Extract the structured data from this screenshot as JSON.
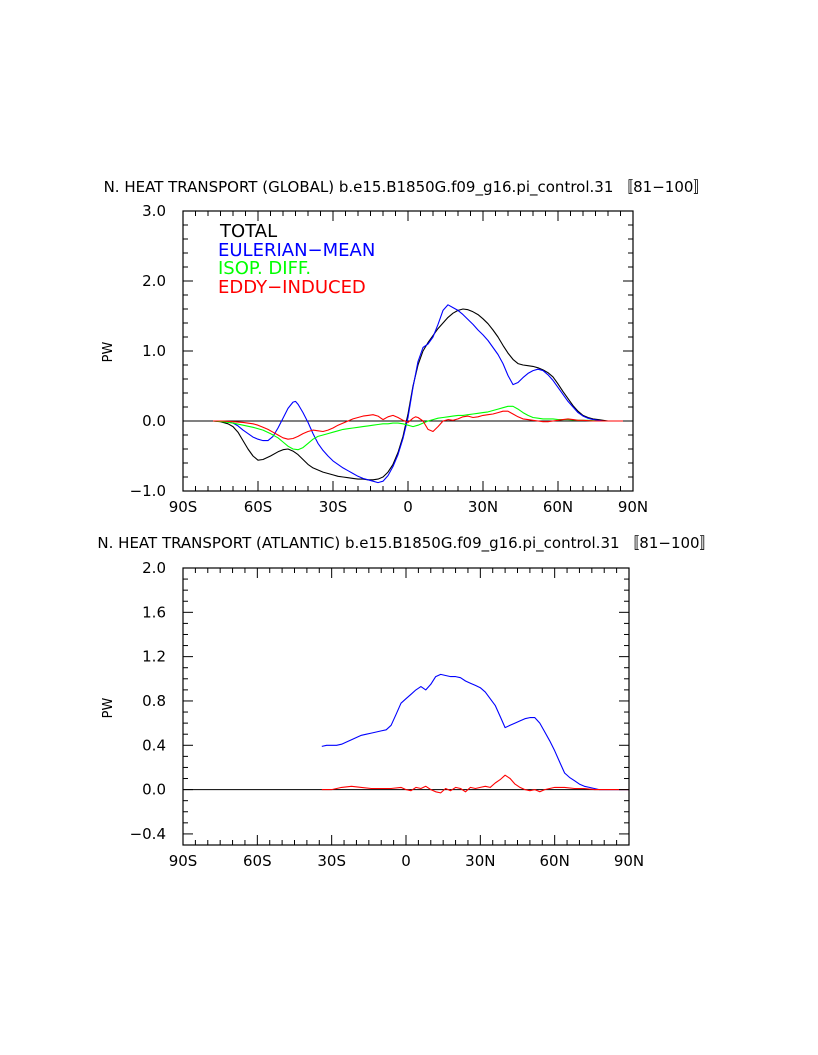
{
  "chart_data": [
    {
      "type": "line",
      "title": "N. HEAT TRANSPORT (GLOBAL) b.e15.B1850G.f09_g16.pi_control.31 〚81−100〛",
      "xlabel": "",
      "ylabel": "PW",
      "xlim": [
        -90,
        90
      ],
      "ylim": [
        -1.0,
        3.0
      ],
      "x_ticks": [
        -90,
        -60,
        -30,
        0,
        30,
        60,
        90
      ],
      "x_tick_labels": [
        "90S",
        "60S",
        "30S",
        "0",
        "30N",
        "60N",
        "90N"
      ],
      "y_ticks": [
        -1.0,
        0.0,
        1.0,
        2.0,
        3.0
      ],
      "y_tick_labels": [
        "−1.0",
        "0.0",
        "1.0",
        "2.0",
        "3.0"
      ],
      "grid": false,
      "legend_position": "top-left",
      "series": [
        {
          "name": "TOTAL",
          "color": "#000000",
          "x": [
            -78,
            -75,
            -72,
            -70,
            -68,
            -66,
            -64,
            -62,
            -60,
            -58,
            -55,
            -52,
            -50,
            -48,
            -46,
            -44,
            -42,
            -40,
            -38,
            -36,
            -34,
            -32,
            -30,
            -28,
            -26,
            -24,
            -22,
            -20,
            -18,
            -16,
            -14,
            -12,
            -10,
            -8,
            -6,
            -4,
            -2,
            0,
            2,
            4,
            6,
            8,
            10,
            12,
            14,
            16,
            18,
            20,
            22,
            24,
            26,
            28,
            30,
            32,
            34,
            36,
            38,
            40,
            42,
            44,
            46,
            48,
            50,
            52,
            54,
            56,
            58,
            60,
            62,
            64,
            66,
            68,
            70,
            72,
            74,
            76,
            78,
            80,
            85,
            90
          ],
          "y": [
            0.0,
            -0.01,
            -0.04,
            -0.08,
            -0.16,
            -0.28,
            -0.4,
            -0.5,
            -0.56,
            -0.55,
            -0.5,
            -0.44,
            -0.41,
            -0.4,
            -0.43,
            -0.48,
            -0.55,
            -0.62,
            -0.67,
            -0.7,
            -0.73,
            -0.75,
            -0.77,
            -0.79,
            -0.8,
            -0.81,
            -0.82,
            -0.83,
            -0.83,
            -0.84,
            -0.84,
            -0.83,
            -0.8,
            -0.73,
            -0.62,
            -0.45,
            -0.22,
            0.1,
            0.5,
            0.8,
            1.0,
            1.12,
            1.22,
            1.32,
            1.4,
            1.48,
            1.54,
            1.58,
            1.6,
            1.59,
            1.56,
            1.52,
            1.46,
            1.39,
            1.3,
            1.2,
            1.08,
            0.97,
            0.88,
            0.82,
            0.8,
            0.79,
            0.78,
            0.76,
            0.73,
            0.69,
            0.63,
            0.53,
            0.42,
            0.32,
            0.22,
            0.14,
            0.08,
            0.05,
            0.03,
            0.02,
            0.01,
            0.0,
            0.0,
            0.0
          ]
        },
        {
          "name": "EULERIAN−MEAN",
          "color": "#0000ff",
          "x": [
            -78,
            -75,
            -72,
            -70,
            -68,
            -66,
            -64,
            -62,
            -60,
            -58,
            -56,
            -54,
            -52,
            -50,
            -48,
            -46,
            -45,
            -44,
            -43,
            -42,
            -40,
            -38,
            -36,
            -34,
            -32,
            -30,
            -28,
            -26,
            -24,
            -22,
            -20,
            -18,
            -16,
            -14,
            -12,
            -10,
            -8,
            -6,
            -4,
            -2,
            0,
            2,
            4,
            6,
            8,
            10,
            12,
            14,
            16,
            18,
            20,
            22,
            24,
            26,
            28,
            30,
            32,
            34,
            36,
            38,
            40,
            42,
            44,
            46,
            48,
            50,
            52,
            54,
            56,
            58,
            60,
            62,
            64,
            66,
            68,
            70,
            72,
            74,
            76,
            78,
            80,
            85,
            90
          ],
          "y": [
            0.0,
            0.0,
            -0.01,
            -0.03,
            -0.07,
            -0.13,
            -0.18,
            -0.23,
            -0.26,
            -0.28,
            -0.28,
            -0.22,
            -0.1,
            0.04,
            0.18,
            0.27,
            0.28,
            0.24,
            0.18,
            0.12,
            -0.02,
            -0.18,
            -0.32,
            -0.42,
            -0.5,
            -0.57,
            -0.62,
            -0.67,
            -0.71,
            -0.75,
            -0.79,
            -0.82,
            -0.84,
            -0.86,
            -0.88,
            -0.86,
            -0.78,
            -0.65,
            -0.48,
            -0.25,
            0.05,
            0.48,
            0.85,
            1.05,
            1.1,
            1.2,
            1.38,
            1.58,
            1.66,
            1.62,
            1.58,
            1.52,
            1.45,
            1.38,
            1.3,
            1.23,
            1.15,
            1.05,
            0.95,
            0.82,
            0.65,
            0.52,
            0.55,
            0.62,
            0.68,
            0.72,
            0.74,
            0.72,
            0.66,
            0.58,
            0.48,
            0.38,
            0.28,
            0.2,
            0.12,
            0.07,
            0.04,
            0.02,
            0.01,
            0.0,
            0.0,
            0.0,
            0.0
          ]
        },
        {
          "name": "ISOP. DIFF.",
          "color": "#00ff00",
          "x": [
            -78,
            -74,
            -70,
            -66,
            -62,
            -58,
            -55,
            -52,
            -50,
            -48,
            -46,
            -44,
            -42,
            -40,
            -38,
            -36,
            -34,
            -32,
            -30,
            -28,
            -26,
            -24,
            -22,
            -20,
            -18,
            -16,
            -14,
            -12,
            -10,
            -8,
            -6,
            -4,
            -2,
            0,
            2,
            4,
            6,
            8,
            10,
            12,
            14,
            16,
            18,
            20,
            22,
            24,
            26,
            28,
            30,
            32,
            34,
            36,
            38,
            40,
            42,
            44,
            46,
            48,
            50,
            52,
            54,
            56,
            58,
            60,
            64,
            68,
            72,
            76,
            80,
            85,
            90
          ],
          "y": [
            0.0,
            -0.01,
            -0.03,
            -0.06,
            -0.09,
            -0.13,
            -0.18,
            -0.24,
            -0.3,
            -0.36,
            -0.4,
            -0.41,
            -0.38,
            -0.32,
            -0.26,
            -0.22,
            -0.2,
            -0.18,
            -0.16,
            -0.14,
            -0.12,
            -0.11,
            -0.1,
            -0.09,
            -0.08,
            -0.07,
            -0.06,
            -0.05,
            -0.04,
            -0.04,
            -0.03,
            -0.03,
            -0.04,
            -0.06,
            -0.08,
            -0.06,
            -0.03,
            0.0,
            0.02,
            0.04,
            0.05,
            0.06,
            0.07,
            0.08,
            0.08,
            0.09,
            0.1,
            0.11,
            0.12,
            0.13,
            0.15,
            0.17,
            0.19,
            0.21,
            0.21,
            0.17,
            0.12,
            0.08,
            0.05,
            0.04,
            0.03,
            0.03,
            0.03,
            0.02,
            0.02,
            0.01,
            0.01,
            0.0,
            0.0,
            0.0,
            0.0
          ]
        },
        {
          "name": "EDDY−INDUCED",
          "color": "#ff0000",
          "x": [
            -78,
            -74,
            -70,
            -66,
            -62,
            -60,
            -58,
            -56,
            -54,
            -52,
            -50,
            -48,
            -46,
            -44,
            -42,
            -40,
            -38,
            -36,
            -34,
            -32,
            -30,
            -28,
            -26,
            -24,
            -22,
            -20,
            -18,
            -16,
            -14,
            -12,
            -10,
            -8,
            -6,
            -4,
            -2,
            0,
            1,
            2,
            3,
            4,
            6,
            8,
            10,
            12,
            14,
            16,
            18,
            20,
            22,
            24,
            26,
            28,
            30,
            32,
            34,
            36,
            38,
            40,
            42,
            44,
            46,
            48,
            50,
            52,
            54,
            56,
            58,
            60,
            62,
            64,
            66,
            68,
            70,
            74,
            78,
            82,
            86,
            90
          ],
          "y": [
            0.0,
            0.0,
            -0.01,
            -0.02,
            -0.04,
            -0.06,
            -0.09,
            -0.12,
            -0.16,
            -0.2,
            -0.24,
            -0.26,
            -0.25,
            -0.22,
            -0.18,
            -0.15,
            -0.13,
            -0.14,
            -0.15,
            -0.13,
            -0.1,
            -0.06,
            -0.03,
            0.0,
            0.03,
            0.05,
            0.07,
            0.08,
            0.09,
            0.07,
            0.02,
            0.06,
            0.08,
            0.05,
            0.01,
            -0.02,
            0.01,
            0.04,
            0.06,
            0.05,
            0.0,
            -0.12,
            -0.15,
            -0.08,
            0.0,
            0.02,
            0.01,
            0.03,
            0.06,
            0.07,
            0.05,
            0.06,
            0.08,
            0.09,
            0.1,
            0.12,
            0.14,
            0.14,
            0.1,
            0.06,
            0.03,
            0.02,
            0.01,
            0.0,
            -0.01,
            -0.01,
            0.0,
            0.01,
            0.02,
            0.03,
            0.02,
            0.01,
            0.01,
            0.0,
            0.0,
            0.0,
            0.0,
            0.0
          ]
        }
      ]
    },
    {
      "type": "line",
      "title": "N. HEAT TRANSPORT (ATLANTIC) b.e15.B1850G.f09_g16.pi_control.31 〚81−100〛",
      "xlabel": "",
      "ylabel": "PW",
      "xlim": [
        -90,
        90
      ],
      "ylim": [
        -0.5,
        2.0
      ],
      "x_ticks": [
        -90,
        -60,
        -30,
        0,
        30,
        60,
        90
      ],
      "x_tick_labels": [
        "90S",
        "60S",
        "30S",
        "0",
        "30N",
        "60N",
        "90N"
      ],
      "y_ticks": [
        -0.4,
        0.0,
        0.4,
        0.8,
        1.2,
        1.6,
        2.0
      ],
      "y_tick_labels": [
        "−0.4",
        "0.0",
        "0.4",
        "0.8",
        "1.2",
        "1.6",
        "2.0"
      ],
      "grid": false,
      "series": [
        {
          "color": "#0000ff",
          "x": [
            -34,
            -32,
            -30,
            -28,
            -26,
            -24,
            -22,
            -20,
            -18,
            -16,
            -14,
            -12,
            -10,
            -8,
            -6,
            -4,
            -2,
            0,
            2,
            4,
            6,
            8,
            10,
            12,
            14,
            16,
            18,
            20,
            22,
            24,
            26,
            28,
            30,
            32,
            34,
            36,
            38,
            40,
            42,
            44,
            46,
            48,
            50,
            52,
            54,
            56,
            58,
            60,
            62,
            64,
            66,
            68,
            70,
            72,
            74,
            76,
            78,
            80,
            85,
            90
          ],
          "y": [
            0.39,
            0.4,
            0.4,
            0.4,
            0.41,
            0.43,
            0.45,
            0.47,
            0.49,
            0.5,
            0.51,
            0.52,
            0.53,
            0.54,
            0.58,
            0.68,
            0.78,
            0.82,
            0.86,
            0.9,
            0.93,
            0.9,
            0.95,
            1.02,
            1.04,
            1.03,
            1.02,
            1.02,
            1.01,
            0.98,
            0.96,
            0.94,
            0.92,
            0.88,
            0.82,
            0.76,
            0.66,
            0.56,
            0.58,
            0.6,
            0.62,
            0.64,
            0.65,
            0.65,
            0.6,
            0.52,
            0.44,
            0.35,
            0.25,
            0.15,
            0.11,
            0.08,
            0.05,
            0.03,
            0.02,
            0.01,
            0.0,
            0.0,
            0.0,
            0.0
          ]
        },
        {
          "color": "#ff0000",
          "x": [
            -34,
            -30,
            -26,
            -22,
            -18,
            -14,
            -10,
            -6,
            -2,
            0,
            2,
            4,
            6,
            8,
            10,
            12,
            14,
            16,
            18,
            20,
            22,
            24,
            26,
            28,
            30,
            32,
            34,
            36,
            38,
            40,
            42,
            44,
            46,
            48,
            50,
            52,
            54,
            56,
            58,
            60,
            64,
            68,
            72,
            76,
            80,
            85,
            90
          ],
          "y": [
            0.0,
            0.0,
            0.02,
            0.03,
            0.02,
            0.01,
            0.01,
            0.01,
            0.02,
            0.0,
            -0.01,
            0.02,
            0.01,
            0.03,
            0.0,
            -0.02,
            -0.03,
            0.01,
            -0.01,
            0.02,
            0.01,
            -0.02,
            0.02,
            0.01,
            0.02,
            0.03,
            0.02,
            0.06,
            0.09,
            0.13,
            0.1,
            0.05,
            0.02,
            0.0,
            -0.01,
            0.0,
            -0.02,
            0.0,
            0.01,
            0.02,
            0.02,
            0.01,
            0.01,
            0.0,
            0.0,
            0.0,
            0.0
          ]
        }
      ]
    }
  ]
}
